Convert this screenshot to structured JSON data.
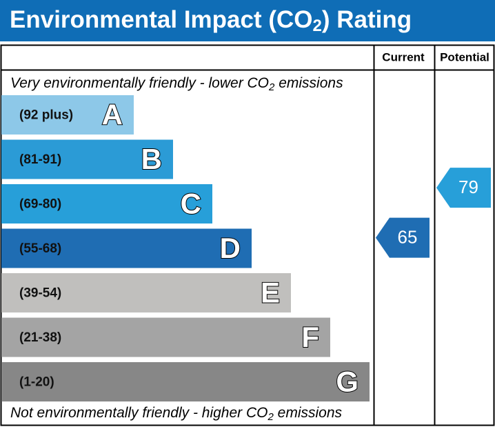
{
  "title": {
    "before": "Environmental Impact (CO",
    "sub": "2",
    "after": ") Rating"
  },
  "columns": {
    "current": "Current",
    "potential": "Potential"
  },
  "top_note": {
    "before": "Very environmentally friendly - lower CO",
    "sub": "2",
    "after": " emissions"
  },
  "bottom_note": {
    "before": "Not environmentally friendly - higher CO",
    "sub": "2",
    "after": " emissions"
  },
  "bands": [
    {
      "range": "(92 plus)",
      "letter": "A",
      "color": "#8dc8e8"
    },
    {
      "range": "(81-91)",
      "letter": "B",
      "color": "#2b9bd6"
    },
    {
      "range": "(69-80)",
      "letter": "C",
      "color": "#279fd9"
    },
    {
      "range": "(55-68)",
      "letter": "D",
      "color": "#1f6db3"
    },
    {
      "range": "(39-54)",
      "letter": "E",
      "color": "#c0bfbd"
    },
    {
      "range": "(21-38)",
      "letter": "F",
      "color": "#a4a4a4"
    },
    {
      "range": "(1-20)",
      "letter": "G",
      "color": "#878787"
    }
  ],
  "current": 65,
  "potential": 79
}
